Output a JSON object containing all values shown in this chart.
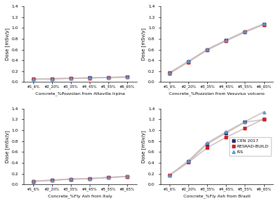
{
  "x_labels": [
    "#1_6%",
    "#2_20%",
    "#3_35%",
    "#4_45%",
    "#5_55%",
    "#6_65%"
  ],
  "x_positions": [
    0,
    1,
    2,
    3,
    4,
    5
  ],
  "plot1": {
    "title": "Concrete_%Pozzolan from Altavilla Irpina",
    "cen": [
      0.055,
      0.062,
      0.07,
      0.078,
      0.086,
      0.094
    ],
    "resrad": [
      0.052,
      0.059,
      0.067,
      0.075,
      0.083,
      0.091
    ],
    "iss": [
      0.054,
      0.061,
      0.069,
      0.077,
      0.085,
      0.093
    ]
  },
  "plot2": {
    "title": "Concrete_%Pozzolan from Vesuvius volcano",
    "cen": [
      0.17,
      0.38,
      0.6,
      0.77,
      0.93,
      1.07
    ],
    "resrad": [
      0.16,
      0.37,
      0.59,
      0.76,
      0.92,
      1.06
    ],
    "iss": [
      0.175,
      0.385,
      0.605,
      0.775,
      0.935,
      1.075
    ]
  },
  "plot3": {
    "title": "Concrete_%Fly Ash from Italy",
    "cen": [
      0.06,
      0.08,
      0.1,
      0.11,
      0.13,
      0.15
    ],
    "resrad": [
      0.057,
      0.077,
      0.097,
      0.107,
      0.127,
      0.147
    ],
    "iss": [
      0.062,
      0.082,
      0.102,
      0.112,
      0.132,
      0.152
    ]
  },
  "plot4": {
    "title": "Concrete_%Fly Ash from Brazil",
    "cen": [
      0.17,
      0.42,
      0.75,
      0.95,
      1.15,
      1.2
    ],
    "resrad": [
      0.17,
      0.41,
      0.68,
      0.87,
      1.04,
      1.21
    ],
    "iss": [
      0.175,
      0.44,
      0.77,
      0.97,
      1.16,
      1.34
    ]
  },
  "color_cen": "#2b2b6e",
  "color_resrad": "#cc2222",
  "color_iss": "#5599cc",
  "color_line": "#ccbbbb",
  "ylabel": "Dose [mSv/y]",
  "ylim": [
    0,
    1.4
  ],
  "yticks": [
    0.0,
    0.2,
    0.4,
    0.6,
    0.8,
    1.0,
    1.2,
    1.4
  ],
  "legend_labels": [
    "CEN 2017",
    "RESRAD-BUILD",
    "ISS"
  ],
  "background": "#ffffff"
}
